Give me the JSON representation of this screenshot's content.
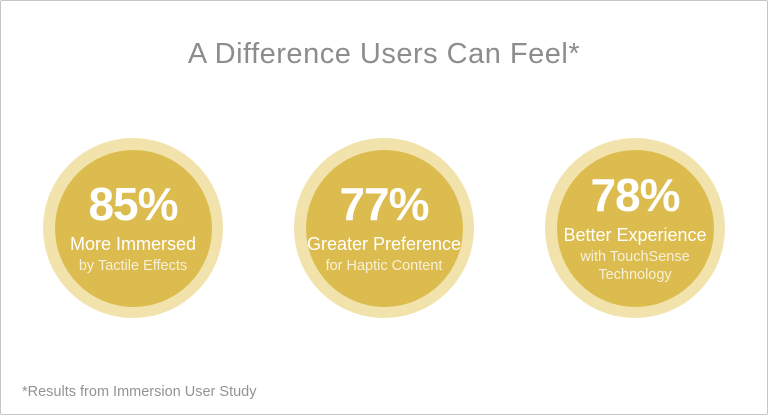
{
  "slide": {
    "background": "#ffffff",
    "border_color": "#c6c6c9"
  },
  "title": {
    "text": "A Difference Users Can Feel*",
    "color": "#8d8d90"
  },
  "stats": [
    {
      "percent": "85%",
      "label": "More Immersed",
      "sublabel": "by Tactile Effects"
    },
    {
      "percent": "77%",
      "label": "Greater Preference",
      "sublabel": "for Haptic Content"
    },
    {
      "percent": "78%",
      "label": "Better Experience",
      "sublabel": "with TouchSense Technology"
    }
  ],
  "footnote": {
    "text": "*Results from Immersion User Study",
    "color": "#939395"
  },
  "colors": {
    "circle_inner": "#dcbc4e",
    "circle_ring": "#f1e3ab",
    "percent_text": "#ffffff",
    "label_text": "#ffffff",
    "sublabel_text": "rgba(255,255,255,0.78)"
  },
  "chart_data": {
    "type": "table",
    "layout_hint": "three KPI stat circles, horizontal row, centered",
    "title": "A Difference Users Can Feel*",
    "categories": [
      "More Immersed by Tactile Effects",
      "Greater Preference for Haptic Content",
      "Better Experience with TouchSense Technology"
    ],
    "values": [
      85,
      77,
      78
    ],
    "value_unit": "%",
    "annotations": [
      "*Results from Immersion User Study"
    ],
    "legend": "none",
    "grid": false
  }
}
